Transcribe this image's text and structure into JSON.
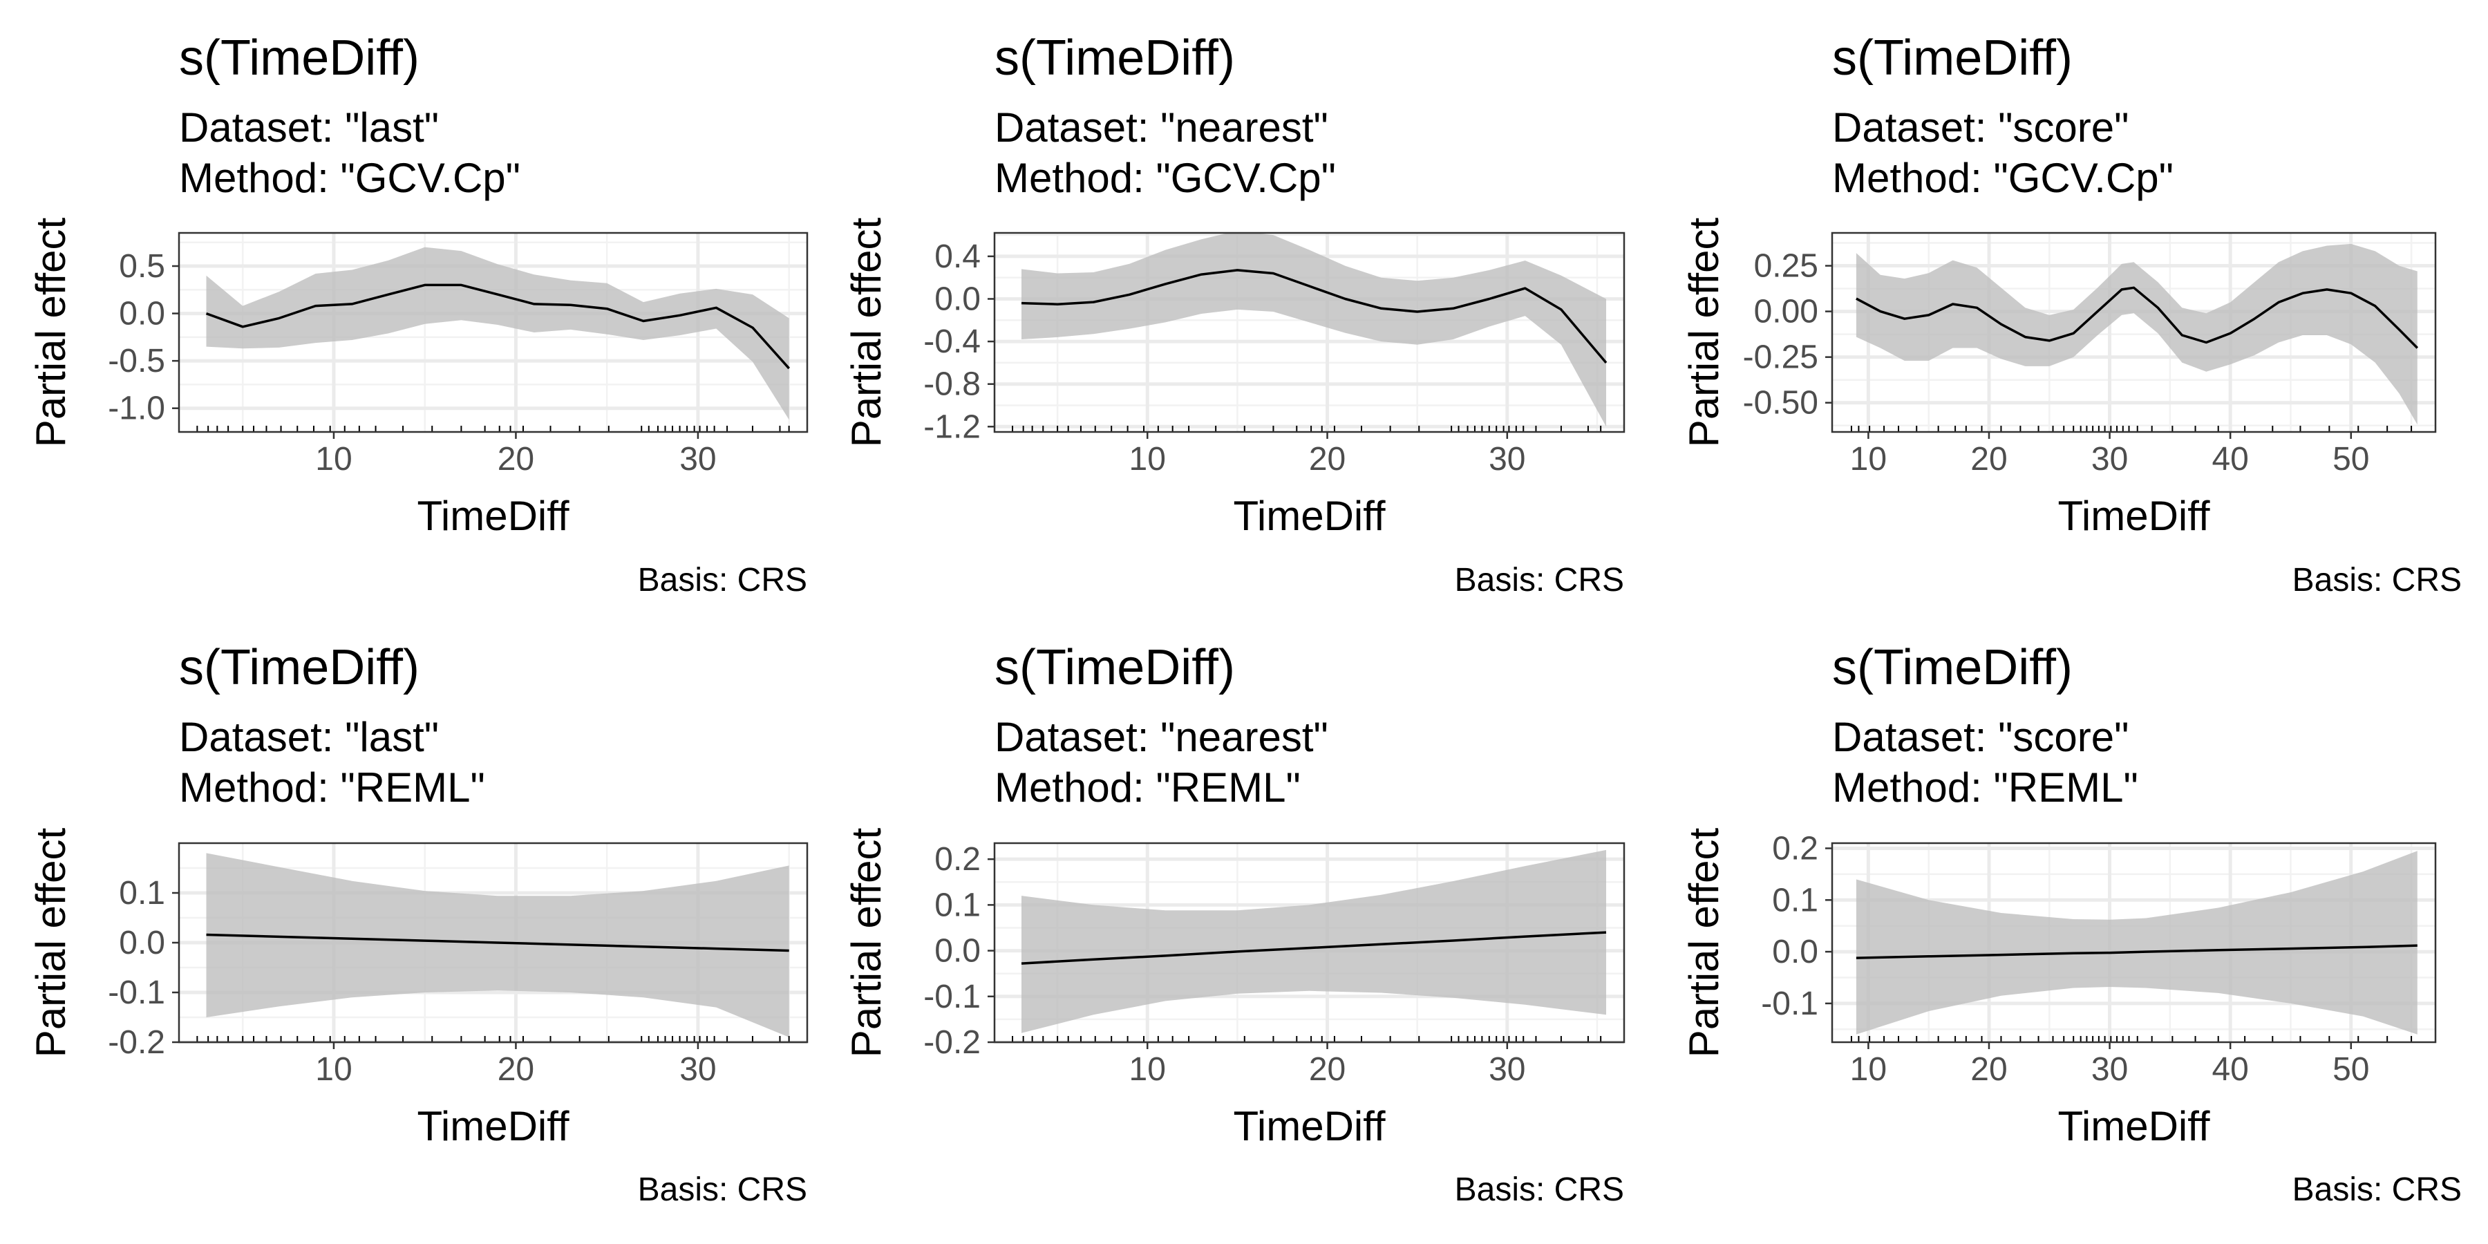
{
  "chart_data": [
    {
      "type": "line",
      "title": "s(TimeDiff)",
      "subtitle": [
        "Dataset: \"last\"",
        "Method: \"GCV.Cp\""
      ],
      "xlabel": "TimeDiff",
      "ylabel": "Partial effect",
      "caption": "Basis: CRS",
      "xlim": [
        1.5,
        36
      ],
      "ylim": [
        -1.25,
        0.85
      ],
      "x_ticks": [
        10,
        20,
        30
      ],
      "y_ticks": [
        -1.0,
        -0.5,
        0.0,
        0.5
      ],
      "y_tick_labels": [
        "-1.0",
        "-0.5",
        "0.0",
        "0.5"
      ],
      "series": [
        {
          "x": [
            3,
            5,
            7,
            9,
            11,
            13,
            15,
            17,
            19,
            21,
            23,
            25,
            27,
            29,
            31,
            33,
            35
          ],
          "values": [
            0.0,
            -0.14,
            -0.05,
            0.08,
            0.1,
            0.2,
            0.3,
            0.3,
            0.2,
            0.1,
            0.09,
            0.05,
            -0.08,
            -0.02,
            0.06,
            -0.15,
            -0.58
          ],
          "lower": [
            -0.35,
            -0.37,
            -0.36,
            -0.31,
            -0.28,
            -0.21,
            -0.11,
            -0.07,
            -0.12,
            -0.2,
            -0.17,
            -0.22,
            -0.28,
            -0.23,
            -0.16,
            -0.51,
            -1.12
          ],
          "upper": [
            0.4,
            0.08,
            0.23,
            0.42,
            0.46,
            0.56,
            0.7,
            0.66,
            0.52,
            0.41,
            0.35,
            0.32,
            0.12,
            0.21,
            0.26,
            0.2,
            -0.05
          ]
        }
      ],
      "rug": [
        2.5,
        3.1,
        3.6,
        4.2,
        5.0,
        5.6,
        6.3,
        7.1,
        8.0,
        8.9,
        9.8,
        10.6,
        11.4,
        12.3,
        13.8,
        15.4,
        17.0,
        18.3,
        19.1,
        19.7,
        20.4,
        21.9,
        23.5,
        25.1,
        26.9,
        27.3,
        27.8,
        28.2,
        28.6,
        29.0,
        29.4,
        29.8,
        30.1,
        30.5,
        30.9,
        31.6,
        33.0,
        34.5,
        35.0
      ]
    },
    {
      "type": "line",
      "title": "s(TimeDiff)",
      "subtitle": [
        "Dataset: \"nearest\"",
        "Method: \"GCV.Cp\""
      ],
      "xlabel": "TimeDiff",
      "ylabel": "Partial effect",
      "caption": "Basis: CRS",
      "xlim": [
        1.5,
        36.5
      ],
      "ylim": [
        -1.25,
        0.62
      ],
      "x_ticks": [
        10,
        20,
        30
      ],
      "y_ticks": [
        -1.2,
        -0.8,
        -0.4,
        0.0,
        0.4
      ],
      "y_tick_labels": [
        "-1.2",
        "-0.8",
        "-0.4",
        "0.0",
        "0.4"
      ],
      "series": [
        {
          "x": [
            3,
            5,
            7,
            9,
            11,
            13,
            15,
            17,
            19,
            21,
            23,
            25,
            27,
            29,
            31,
            33,
            35.5
          ],
          "values": [
            -0.04,
            -0.05,
            -0.03,
            0.04,
            0.14,
            0.23,
            0.27,
            0.24,
            0.12,
            0.0,
            -0.09,
            -0.12,
            -0.09,
            0.0,
            0.1,
            -0.1,
            -0.6
          ],
          "lower": [
            -0.38,
            -0.36,
            -0.33,
            -0.28,
            -0.22,
            -0.14,
            -0.1,
            -0.12,
            -0.22,
            -0.32,
            -0.4,
            -0.43,
            -0.38,
            -0.26,
            -0.16,
            -0.43,
            -1.2
          ],
          "upper": [
            0.28,
            0.24,
            0.25,
            0.33,
            0.46,
            0.56,
            0.64,
            0.6,
            0.46,
            0.31,
            0.2,
            0.17,
            0.2,
            0.27,
            0.36,
            0.22,
            0.0
          ]
        }
      ],
      "rug": [
        2.5,
        3.1,
        3.6,
        4.2,
        5.0,
        5.6,
        6.3,
        7.1,
        8.0,
        8.9,
        9.8,
        10.6,
        11.4,
        12.3,
        13.8,
        15.4,
        17.0,
        18.3,
        19.1,
        19.7,
        20.4,
        21.9,
        23.5,
        25.1,
        26.9,
        27.3,
        27.8,
        28.2,
        28.6,
        29.0,
        29.4,
        29.8,
        30.1,
        30.5,
        30.9,
        31.6,
        33.0,
        34.5,
        35.2
      ]
    },
    {
      "type": "line",
      "title": "s(TimeDiff)",
      "subtitle": [
        "Dataset: \"score\"",
        "Method: \"GCV.Cp\""
      ],
      "xlabel": "TimeDiff",
      "ylabel": "Partial effect",
      "caption": "Basis: CRS",
      "xlim": [
        7,
        57
      ],
      "ylim": [
        -0.66,
        0.43
      ],
      "x_ticks": [
        10,
        20,
        30,
        40,
        50
      ],
      "y_ticks": [
        -0.5,
        -0.25,
        0.0,
        0.25
      ],
      "y_tick_labels": [
        "-0.50",
        "-0.25",
        "0.00",
        "0.25"
      ],
      "series": [
        {
          "x": [
            9,
            11,
            13,
            15,
            17,
            19,
            21,
            23,
            25,
            27,
            29,
            31,
            32,
            34,
            36,
            38,
            40,
            42,
            44,
            46,
            48,
            50,
            52,
            54,
            55.5
          ],
          "values": [
            0.07,
            0.0,
            -0.04,
            -0.02,
            0.04,
            0.02,
            -0.07,
            -0.14,
            -0.16,
            -0.12,
            0.0,
            0.12,
            0.13,
            0.02,
            -0.13,
            -0.17,
            -0.12,
            -0.04,
            0.05,
            0.1,
            0.12,
            0.1,
            0.03,
            -0.1,
            -0.2
          ],
          "lower": [
            -0.14,
            -0.2,
            -0.27,
            -0.27,
            -0.2,
            -0.2,
            -0.26,
            -0.3,
            -0.3,
            -0.25,
            -0.13,
            -0.02,
            -0.01,
            -0.12,
            -0.28,
            -0.33,
            -0.29,
            -0.24,
            -0.17,
            -0.13,
            -0.13,
            -0.18,
            -0.28,
            -0.45,
            -0.62
          ],
          "upper": [
            0.32,
            0.2,
            0.18,
            0.21,
            0.28,
            0.24,
            0.13,
            0.02,
            -0.02,
            0.01,
            0.13,
            0.26,
            0.27,
            0.16,
            0.02,
            -0.01,
            0.05,
            0.16,
            0.27,
            0.33,
            0.36,
            0.37,
            0.33,
            0.25,
            0.22
          ]
        }
      ],
      "rug": [
        8.6,
        9.2,
        10.1,
        11.3,
        12.5,
        14.0,
        15.8,
        17.2,
        18.1,
        19.4,
        21.0,
        22.6,
        24.1,
        25.3,
        26.2,
        27.0,
        27.6,
        28.1,
        28.6,
        29.1,
        29.6,
        30.1,
        30.6,
        31.1,
        31.6,
        32.3,
        33.5,
        35.2,
        37.1,
        39.0,
        41.2,
        43.5,
        45.8,
        48.2,
        50.6,
        53.0,
        55.0
      ]
    },
    {
      "type": "line",
      "title": "s(TimeDiff)",
      "subtitle": [
        "Dataset: \"last\"",
        "Method: \"REML\""
      ],
      "xlabel": "TimeDiff",
      "ylabel": "Partial effect",
      "caption": "Basis: CRS",
      "xlim": [
        1.5,
        36
      ],
      "ylim": [
        -0.2,
        0.2
      ],
      "x_ticks": [
        10,
        20,
        30
      ],
      "y_ticks": [
        -0.2,
        -0.1,
        0.0,
        0.1
      ],
      "y_tick_labels": [
        "-0.2",
        "-0.1",
        "0.0",
        "0.1"
      ],
      "series": [
        {
          "x": [
            3,
            7,
            11,
            15,
            19,
            23,
            27,
            31,
            35
          ],
          "values": [
            0.016,
            0.012,
            0.008,
            0.004,
            0.0,
            -0.004,
            -0.008,
            -0.012,
            -0.016
          ],
          "lower": [
            -0.15,
            -0.128,
            -0.11,
            -0.1,
            -0.096,
            -0.1,
            -0.11,
            -0.13,
            -0.19
          ],
          "upper": [
            0.18,
            0.152,
            0.124,
            0.104,
            0.094,
            0.094,
            0.104,
            0.124,
            0.155
          ]
        }
      ],
      "rug": [
        2.5,
        3.1,
        3.6,
        4.2,
        5.0,
        5.6,
        6.3,
        7.1,
        8.0,
        8.9,
        9.8,
        10.6,
        11.4,
        12.3,
        13.8,
        15.4,
        17.0,
        18.3,
        19.1,
        19.7,
        20.4,
        21.9,
        23.5,
        25.1,
        26.9,
        27.3,
        27.8,
        28.2,
        28.6,
        29.0,
        29.4,
        29.8,
        30.1,
        30.5,
        30.9,
        31.6,
        33.0,
        34.5,
        35.0
      ]
    },
    {
      "type": "line",
      "title": "s(TimeDiff)",
      "subtitle": [
        "Dataset: \"nearest\"",
        "Method: \"REML\""
      ],
      "xlabel": "TimeDiff",
      "ylabel": "Partial effect",
      "caption": "Basis: CRS",
      "xlim": [
        1.5,
        36.5
      ],
      "ylim": [
        -0.2,
        0.235
      ],
      "x_ticks": [
        10,
        20,
        30
      ],
      "y_ticks": [
        -0.2,
        -0.1,
        0.0,
        0.1,
        0.2
      ],
      "y_tick_labels": [
        "-0.2",
        "-0.1",
        "0.0",
        "0.1",
        "0.2"
      ],
      "series": [
        {
          "x": [
            3,
            7,
            11,
            15,
            19,
            23,
            27,
            31,
            35.5
          ],
          "values": [
            -0.028,
            -0.019,
            -0.011,
            -0.002,
            0.006,
            0.014,
            0.022,
            0.031,
            0.04
          ],
          "lower": [
            -0.18,
            -0.14,
            -0.11,
            -0.094,
            -0.088,
            -0.092,
            -0.103,
            -0.118,
            -0.14
          ],
          "upper": [
            0.12,
            0.1,
            0.088,
            0.088,
            0.1,
            0.122,
            0.152,
            0.185,
            0.22
          ]
        }
      ],
      "rug": [
        2.5,
        3.1,
        3.6,
        4.2,
        5.0,
        5.6,
        6.3,
        7.1,
        8.0,
        8.9,
        9.8,
        10.6,
        11.4,
        12.3,
        13.8,
        15.4,
        17.0,
        18.3,
        19.1,
        19.7,
        20.4,
        21.9,
        23.5,
        25.1,
        26.9,
        27.3,
        27.8,
        28.2,
        28.6,
        29.0,
        29.4,
        29.8,
        30.1,
        30.5,
        30.9,
        31.6,
        33.0,
        34.5,
        35.2
      ]
    },
    {
      "type": "line",
      "title": "s(TimeDiff)",
      "subtitle": [
        "Dataset: \"score\"",
        "Method: \"REML\""
      ],
      "xlabel": "TimeDiff",
      "ylabel": "Partial effect",
      "caption": "Basis: CRS",
      "xlim": [
        7,
        57
      ],
      "ylim": [
        -0.175,
        0.21
      ],
      "x_ticks": [
        10,
        20,
        30,
        40,
        50
      ],
      "y_ticks": [
        -0.1,
        0.0,
        0.1,
        0.2
      ],
      "y_tick_labels": [
        "-0.1",
        "0.0",
        "0.1",
        "0.2"
      ],
      "series": [
        {
          "x": [
            9,
            15,
            21,
            27,
            30,
            33,
            39,
            45,
            51,
            55.5
          ],
          "values": [
            -0.012,
            -0.009,
            -0.006,
            -0.003,
            -0.002,
            0.0,
            0.003,
            0.006,
            0.009,
            0.012
          ],
          "lower": [
            -0.16,
            -0.115,
            -0.085,
            -0.07,
            -0.068,
            -0.07,
            -0.08,
            -0.1,
            -0.125,
            -0.16
          ],
          "upper": [
            0.14,
            0.1,
            0.075,
            0.063,
            0.062,
            0.065,
            0.085,
            0.115,
            0.155,
            0.195
          ]
        }
      ],
      "rug": [
        8.6,
        9.2,
        10.1,
        11.3,
        12.5,
        14.0,
        15.8,
        17.2,
        18.1,
        19.4,
        21.0,
        22.6,
        24.1,
        25.3,
        26.2,
        27.0,
        27.6,
        28.1,
        28.6,
        29.1,
        29.6,
        30.1,
        30.6,
        31.1,
        31.6,
        32.3,
        33.5,
        35.2,
        37.1,
        39.0,
        41.2,
        43.5,
        45.8,
        48.2,
        50.6,
        53.0,
        55.0
      ]
    }
  ]
}
